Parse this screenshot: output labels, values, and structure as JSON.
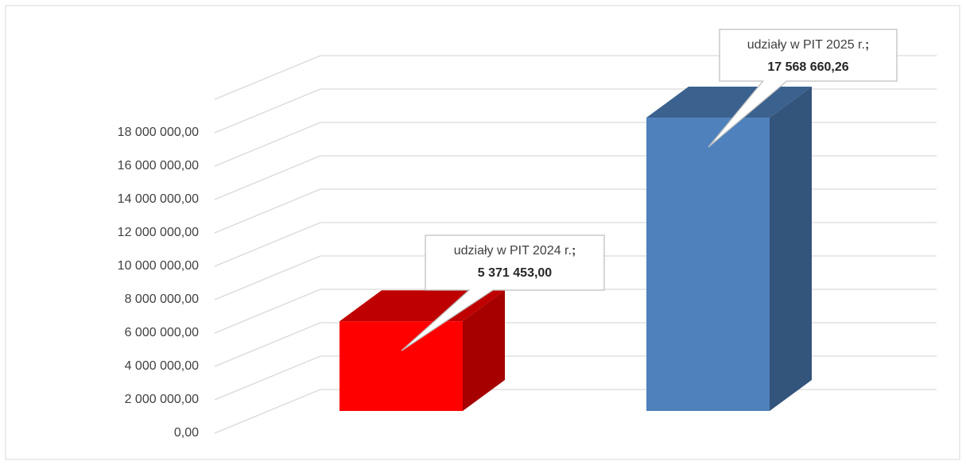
{
  "chart_data": {
    "type": "bar3d",
    "categories": [
      "udziały w PIT 2024 r.",
      "udziały w PIT 2025 r."
    ],
    "values": [
      5371453.0,
      17568660.26
    ],
    "value_labels": [
      "5 371 453,00",
      "17 568 660,26"
    ],
    "data_label_separator": ";",
    "colors": [
      "#ff0000",
      "#4f81bd"
    ],
    "ylim": [
      0,
      20000000
    ],
    "yticks": [
      {
        "value": 0,
        "label": "0,00"
      },
      {
        "value": 2000000,
        "label": "2 000 000,00"
      },
      {
        "value": 4000000,
        "label": "4 000 000,00"
      },
      {
        "value": 6000000,
        "label": "6 000 000,00"
      },
      {
        "value": 8000000,
        "label": "8 000 000,00"
      },
      {
        "value": 10000000,
        "label": "10 000 000,00"
      },
      {
        "value": 12000000,
        "label": "12 000 000,00"
      },
      {
        "value": 14000000,
        "label": "14 000 000,00"
      },
      {
        "value": 16000000,
        "label": "16 000 000,00"
      },
      {
        "value": 18000000,
        "label": "18 000 000,00"
      }
    ],
    "grid": true
  }
}
